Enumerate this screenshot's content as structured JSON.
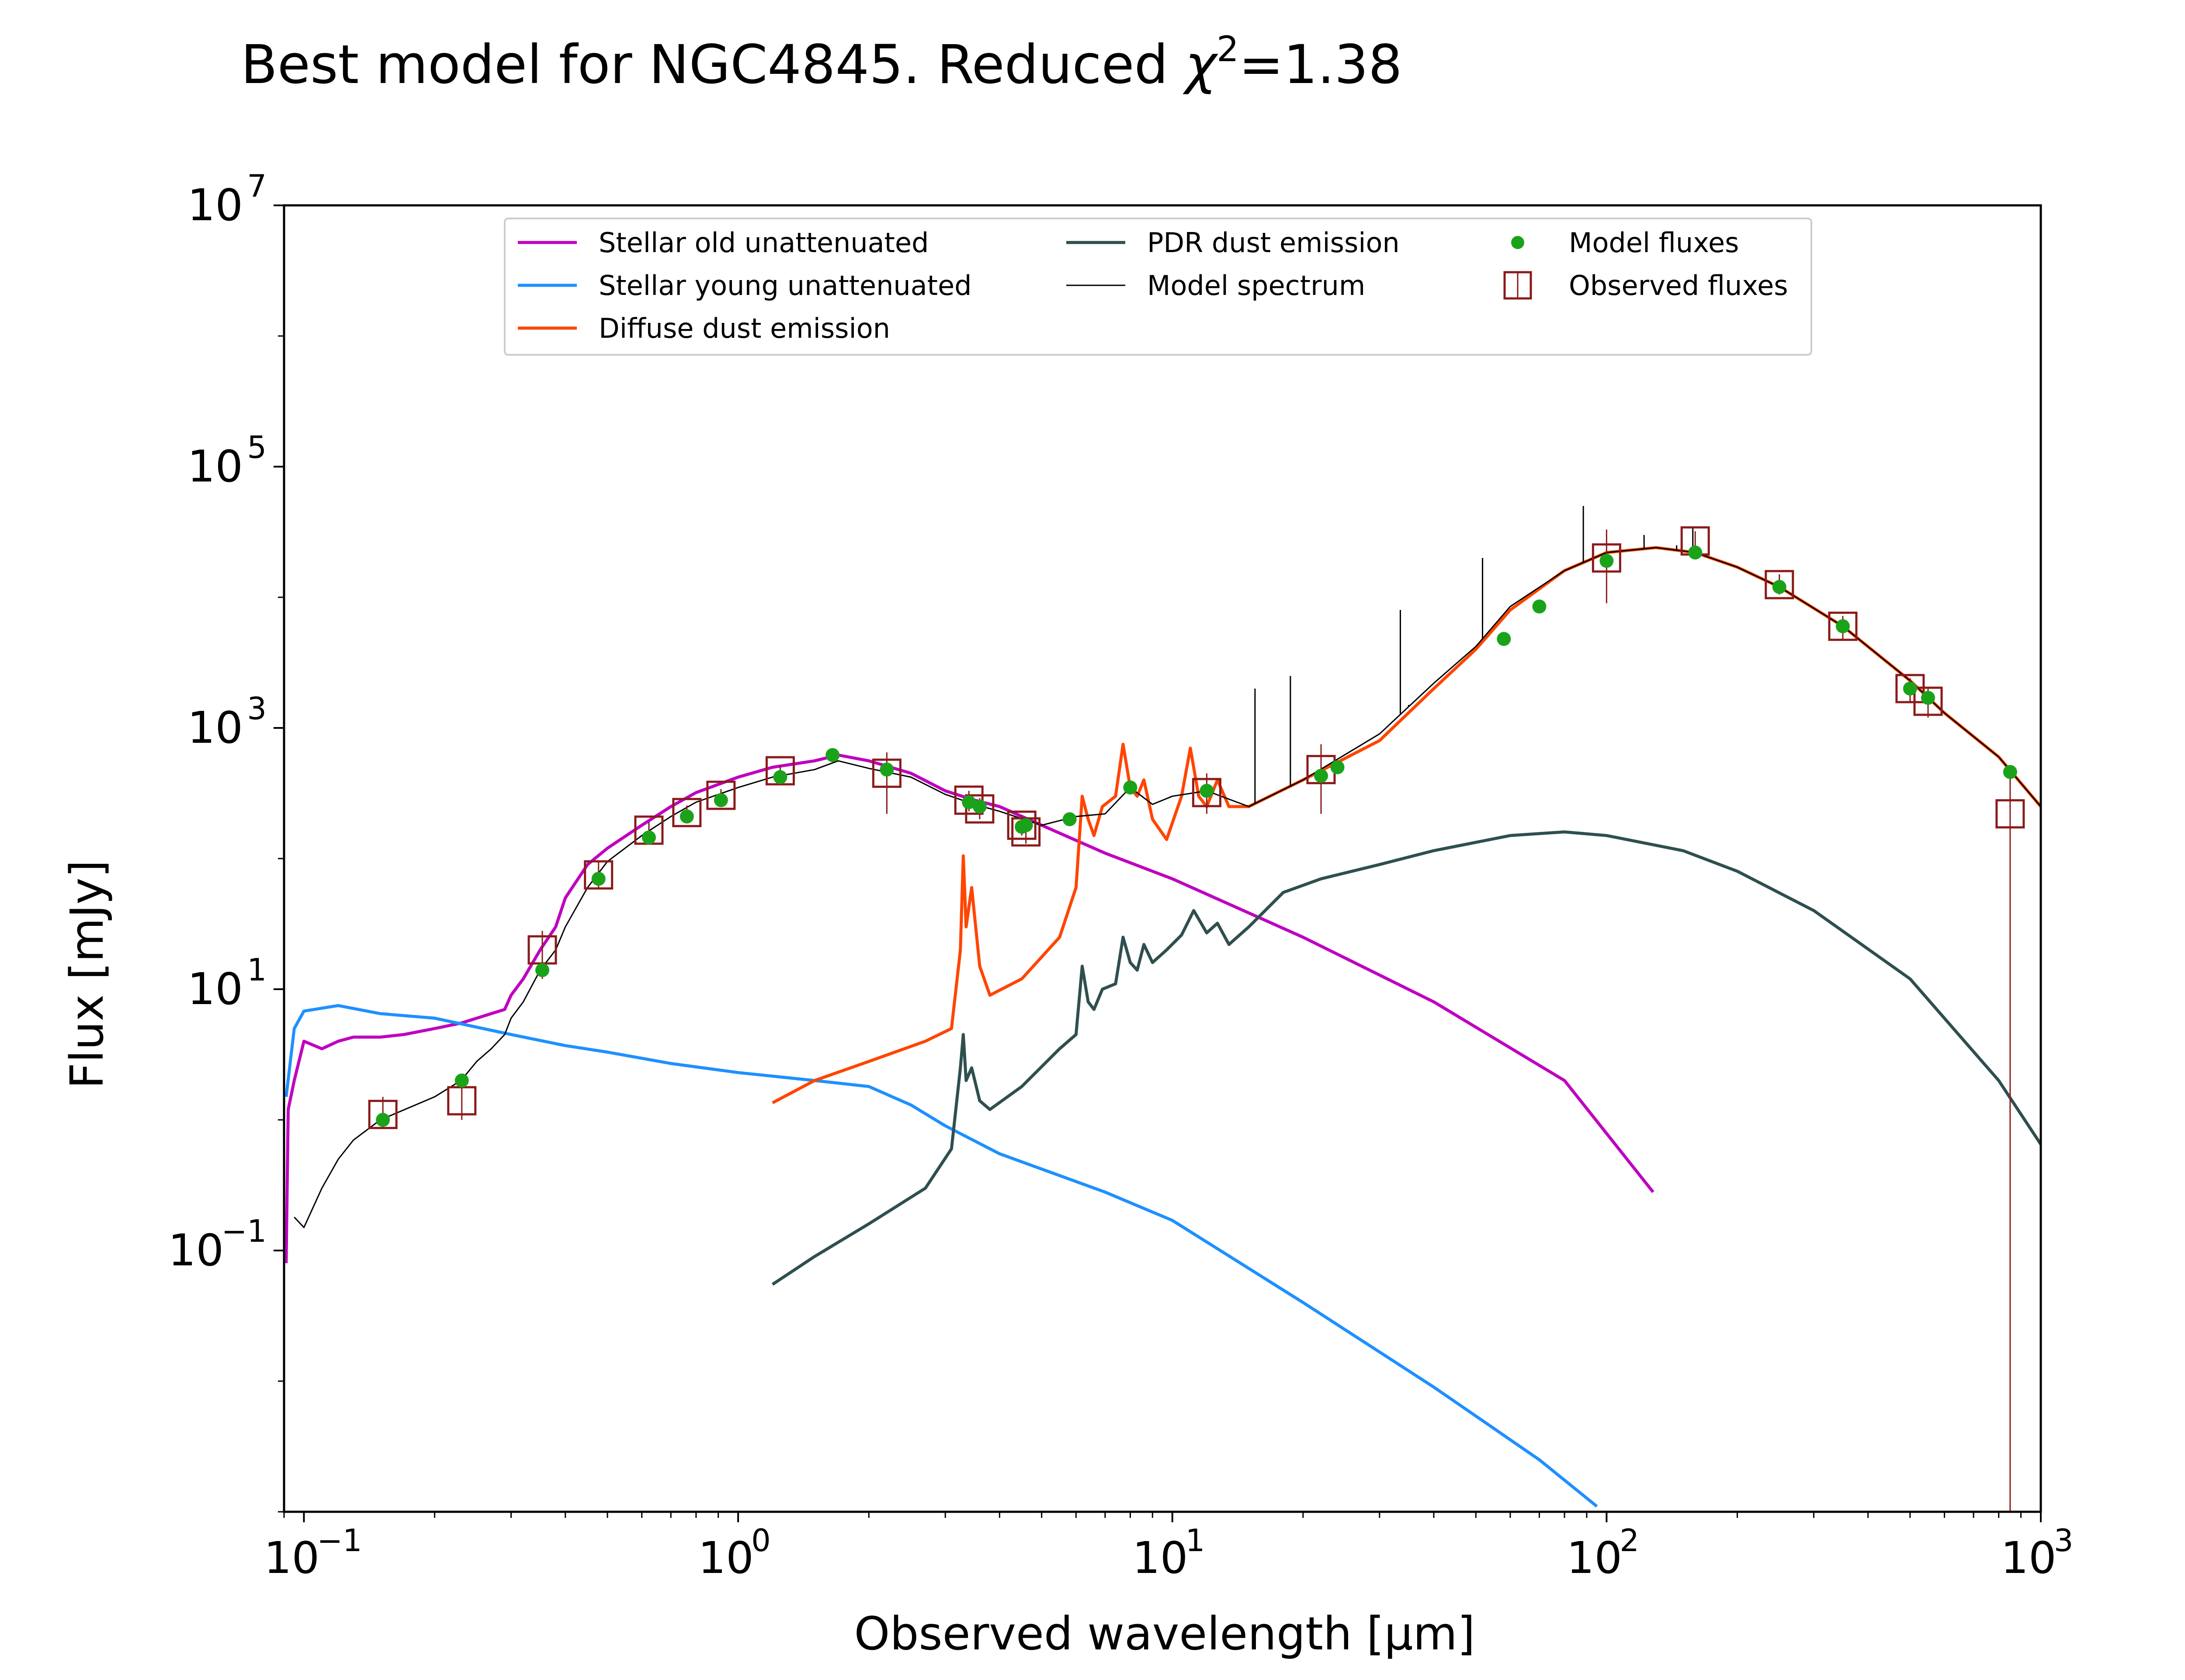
{
  "chart_data": {
    "type": "line",
    "title_main": "Best model for NGC4845. Reduced ",
    "title_chi": "χ",
    "title_chi_exp": "2",
    "title_tail": "=1.38",
    "xlabel": "Observed wavelength [μm]",
    "ylabel": "Flux [mJy]",
    "xscale": "log",
    "yscale": "log",
    "xlim": [
      0.09,
      1000
    ],
    "ylim": [
      0.001,
      10000000
    ],
    "x_ticks": [
      {
        "base": "10",
        "exp": "−1",
        "value": 0.1
      },
      {
        "base": "10",
        "exp": "0",
        "value": 1
      },
      {
        "base": "10",
        "exp": "1",
        "value": 10
      },
      {
        "base": "10",
        "exp": "2",
        "value": 100
      },
      {
        "base": "10",
        "exp": "3",
        "value": 1000
      }
    ],
    "y_ticks": [
      {
        "base": "10",
        "exp": "−1",
        "value": 0.1
      },
      {
        "base": "10",
        "exp": "1",
        "value": 10
      },
      {
        "base": "10",
        "exp": "3",
        "value": 1000
      },
      {
        "base": "10",
        "exp": "5",
        "value": 100000
      },
      {
        "base": "10",
        "exp": "7",
        "value": 10000000
      }
    ],
    "grid": false,
    "legend_position": "top-center",
    "legend": [
      {
        "label": "Stellar old unattenuated",
        "kind": "line",
        "color": "#bf00bf"
      },
      {
        "label": "Stellar young unattenuated",
        "kind": "line",
        "color": "#1e90ff"
      },
      {
        "label": "Diffuse dust emission",
        "kind": "line",
        "color": "#ff4500"
      },
      {
        "label": "PDR dust emission",
        "kind": "line",
        "color": "#2f4f4f"
      },
      {
        "label": "Model spectrum",
        "kind": "thinline",
        "color": "#000000"
      },
      {
        "label": "Model fluxes",
        "kind": "dot",
        "color": "#1aa31a"
      },
      {
        "label": "Observed fluxes",
        "kind": "square",
        "color": "#8b1a1a"
      }
    ],
    "series": [
      {
        "name": "Stellar old unattenuated",
        "color": "#bf00bf",
        "points": [
          [
            0.091,
            0.08
          ],
          [
            0.092,
            1.2
          ],
          [
            0.095,
            2.0
          ],
          [
            0.1,
            4.0
          ],
          [
            0.11,
            3.5
          ],
          [
            0.12,
            4.0
          ],
          [
            0.13,
            4.3
          ],
          [
            0.15,
            4.3
          ],
          [
            0.17,
            4.5
          ],
          [
            0.2,
            5.0
          ],
          [
            0.23,
            5.5
          ],
          [
            0.25,
            6.0
          ],
          [
            0.27,
            6.5
          ],
          [
            0.29,
            7.0
          ],
          [
            0.3,
            9.0
          ],
          [
            0.32,
            12.0
          ],
          [
            0.35,
            20
          ],
          [
            0.38,
            30
          ],
          [
            0.4,
            50
          ],
          [
            0.45,
            90
          ],
          [
            0.5,
            120
          ],
          [
            0.6,
            180
          ],
          [
            0.7,
            250
          ],
          [
            0.8,
            320
          ],
          [
            1.0,
            420
          ],
          [
            1.2,
            500
          ],
          [
            1.5,
            560
          ],
          [
            1.7,
            620
          ],
          [
            2.0,
            560
          ],
          [
            2.5,
            450
          ],
          [
            3.0,
            330
          ],
          [
            3.5,
            280
          ],
          [
            4.0,
            250
          ],
          [
            5.0,
            180
          ],
          [
            7.0,
            110
          ],
          [
            10,
            70
          ],
          [
            20,
            25
          ],
          [
            40,
            8
          ],
          [
            80,
            2
          ],
          [
            128,
            0.28
          ]
        ]
      },
      {
        "name": "Stellar young unattenuated",
        "color": "#1e90ff",
        "points": [
          [
            0.091,
            1.5
          ],
          [
            0.095,
            5.0
          ],
          [
            0.1,
            6.8
          ],
          [
            0.12,
            7.5
          ],
          [
            0.15,
            6.5
          ],
          [
            0.2,
            6.0
          ],
          [
            0.3,
            4.5
          ],
          [
            0.4,
            3.7
          ],
          [
            0.5,
            3.3
          ],
          [
            0.7,
            2.7
          ],
          [
            1.0,
            2.3
          ],
          [
            1.5,
            2.0
          ],
          [
            2.0,
            1.8
          ],
          [
            2.5,
            1.3
          ],
          [
            3.0,
            0.9
          ],
          [
            4.0,
            0.55
          ],
          [
            5.0,
            0.42
          ],
          [
            7.0,
            0.28
          ],
          [
            10,
            0.17
          ],
          [
            20,
            0.04
          ],
          [
            40,
            0.009
          ],
          [
            70,
            0.0025
          ],
          [
            95,
            0.0011
          ]
        ]
      },
      {
        "name": "Diffuse dust emission",
        "color": "#ff4500",
        "points": [
          [
            1.2,
            1.35
          ],
          [
            1.5,
            2.0
          ],
          [
            2.0,
            2.8
          ],
          [
            2.7,
            4.0
          ],
          [
            3.1,
            5.0
          ],
          [
            3.25,
            20
          ],
          [
            3.3,
            105
          ],
          [
            3.35,
            30
          ],
          [
            3.45,
            60
          ],
          [
            3.6,
            15
          ],
          [
            3.8,
            9.0
          ],
          [
            4.5,
            12
          ],
          [
            5.5,
            25
          ],
          [
            6.0,
            60
          ],
          [
            6.2,
            300
          ],
          [
            6.4,
            200
          ],
          [
            6.6,
            150
          ],
          [
            6.9,
            250
          ],
          [
            7.4,
            300
          ],
          [
            7.7,
            750
          ],
          [
            8.0,
            350
          ],
          [
            8.3,
            300
          ],
          [
            8.6,
            400
          ],
          [
            9.0,
            200
          ],
          [
            9.7,
            140
          ],
          [
            10.5,
            300
          ],
          [
            11.0,
            700
          ],
          [
            11.5,
            300
          ],
          [
            12.0,
            250
          ],
          [
            12.7,
            400
          ],
          [
            13.5,
            250
          ],
          [
            15,
            250
          ],
          [
            20,
            400
          ],
          [
            30,
            800
          ],
          [
            40,
            2000
          ],
          [
            50,
            4000
          ],
          [
            60,
            8000
          ],
          [
            80,
            16000
          ],
          [
            100,
            22000
          ],
          [
            130,
            24000
          ],
          [
            160,
            22000
          ],
          [
            200,
            17000
          ],
          [
            250,
            12000
          ],
          [
            350,
            6000
          ],
          [
            500,
            2300
          ],
          [
            600,
            1300
          ],
          [
            800,
            600
          ],
          [
            1000,
            250
          ]
        ]
      },
      {
        "name": "PDR dust emission",
        "color": "#2f4f4f",
        "points": [
          [
            1.2,
            0.055
          ],
          [
            1.5,
            0.09
          ],
          [
            2.0,
            0.16
          ],
          [
            2.7,
            0.3
          ],
          [
            3.1,
            0.6
          ],
          [
            3.25,
            2.5
          ],
          [
            3.3,
            4.5
          ],
          [
            3.35,
            2.0
          ],
          [
            3.45,
            2.5
          ],
          [
            3.6,
            1.4
          ],
          [
            3.8,
            1.2
          ],
          [
            4.5,
            1.8
          ],
          [
            5.5,
            3.5
          ],
          [
            6.0,
            4.5
          ],
          [
            6.2,
            15
          ],
          [
            6.4,
            8
          ],
          [
            6.6,
            7
          ],
          [
            6.9,
            10
          ],
          [
            7.4,
            11
          ],
          [
            7.7,
            25
          ],
          [
            8.0,
            16
          ],
          [
            8.3,
            14
          ],
          [
            8.6,
            22
          ],
          [
            9.0,
            16
          ],
          [
            9.7,
            20
          ],
          [
            10.5,
            26
          ],
          [
            11.2,
            40
          ],
          [
            12.0,
            27
          ],
          [
            12.7,
            32
          ],
          [
            13.5,
            22
          ],
          [
            15,
            30
          ],
          [
            18,
            55
          ],
          [
            22,
            70
          ],
          [
            30,
            90
          ],
          [
            40,
            115
          ],
          [
            60,
            150
          ],
          [
            80,
            160
          ],
          [
            100,
            150
          ],
          [
            150,
            115
          ],
          [
            200,
            80
          ],
          [
            300,
            40
          ],
          [
            500,
            12
          ],
          [
            800,
            2
          ],
          [
            1000,
            0.65
          ]
        ]
      },
      {
        "name": "Model spectrum",
        "color": "#000000",
        "points": [
          [
            0.095,
            0.18
          ],
          [
            0.1,
            0.15
          ],
          [
            0.11,
            0.3
          ],
          [
            0.12,
            0.5
          ],
          [
            0.13,
            0.7
          ],
          [
            0.15,
            1.0
          ],
          [
            0.2,
            1.5
          ],
          [
            0.23,
            2.0
          ],
          [
            0.25,
            2.8
          ],
          [
            0.27,
            3.5
          ],
          [
            0.29,
            4.5
          ],
          [
            0.3,
            6.0
          ],
          [
            0.32,
            8.0
          ],
          [
            0.35,
            14
          ],
          [
            0.38,
            20
          ],
          [
            0.4,
            30
          ],
          [
            0.45,
            60
          ],
          [
            0.5,
            95
          ],
          [
            0.6,
            150
          ],
          [
            0.7,
            210
          ],
          [
            0.8,
            270
          ],
          [
            1.0,
            350
          ],
          [
            1.2,
            420
          ],
          [
            1.5,
            480
          ],
          [
            1.7,
            560
          ],
          [
            2.0,
            490
          ],
          [
            2.5,
            420
          ],
          [
            3.0,
            310
          ],
          [
            3.5,
            260
          ],
          [
            4.0,
            230
          ],
          [
            5.0,
            180
          ],
          [
            6.0,
            210
          ],
          [
            7.0,
            220
          ],
          [
            8.0,
            350
          ],
          [
            9.0,
            260
          ],
          [
            10,
            300
          ],
          [
            12,
            330
          ],
          [
            15,
            250
          ],
          [
            20,
            400
          ],
          [
            30,
            900
          ],
          [
            40,
            2200
          ],
          [
            50,
            4200
          ],
          [
            60,
            8500
          ],
          [
            80,
            16000
          ],
          [
            100,
            22000
          ],
          [
            130,
            24000
          ],
          [
            160,
            22000
          ],
          [
            200,
            17000
          ],
          [
            250,
            12000
          ],
          [
            350,
            6000
          ],
          [
            500,
            2300
          ],
          [
            600,
            1300
          ],
          [
            800,
            600
          ],
          [
            1000,
            250
          ]
        ]
      }
    ],
    "spectral_lines": [
      {
        "x": 15.5,
        "top": 2000
      },
      {
        "x": 18.7,
        "top": 2500
      },
      {
        "x": 33.5,
        "top": 8000
      },
      {
        "x": 35.0,
        "top": 1500
      },
      {
        "x": 51.8,
        "top": 20000
      },
      {
        "x": 88.4,
        "top": 50000
      },
      {
        "x": 122,
        "top": 30000
      },
      {
        "x": 145,
        "top": 25000
      },
      {
        "x": 158,
        "top": 35000
      }
    ],
    "model_fluxes": [
      {
        "x": 0.152,
        "y": 1.0
      },
      {
        "x": 0.231,
        "y": 2.0
      },
      {
        "x": 0.354,
        "y": 14
      },
      {
        "x": 0.477,
        "y": 70
      },
      {
        "x": 0.623,
        "y": 145
      },
      {
        "x": 0.762,
        "y": 210
      },
      {
        "x": 0.913,
        "y": 280
      },
      {
        "x": 1.25,
        "y": 420
      },
      {
        "x": 1.65,
        "y": 620
      },
      {
        "x": 2.2,
        "y": 480
      },
      {
        "x": 3.4,
        "y": 270
      },
      {
        "x": 3.6,
        "y": 250
      },
      {
        "x": 4.5,
        "y": 175
      },
      {
        "x": 4.6,
        "y": 180
      },
      {
        "x": 5.8,
        "y": 200
      },
      {
        "x": 8.0,
        "y": 350
      },
      {
        "x": 12,
        "y": 330
      },
      {
        "x": 22,
        "y": 430
      },
      {
        "x": 24,
        "y": 500
      },
      {
        "x": 58,
        "y": 4800
      },
      {
        "x": 70,
        "y": 8500
      },
      {
        "x": 100,
        "y": 19000
      },
      {
        "x": 160,
        "y": 22000
      },
      {
        "x": 250,
        "y": 12000
      },
      {
        "x": 350,
        "y": 6000
      },
      {
        "x": 500,
        "y": 2000
      },
      {
        "x": 550,
        "y": 1700
      },
      {
        "x": 850,
        "y": 460
      }
    ],
    "observed_fluxes": [
      {
        "x": 0.152,
        "y": 1.1,
        "err_lo": 0.85,
        "err_hi": 1.5
      },
      {
        "x": 0.231,
        "y": 1.4,
        "err_lo": 1.0,
        "err_hi": 2.0
      },
      {
        "x": 0.354,
        "y": 20,
        "err_lo": 12,
        "err_hi": 28
      },
      {
        "x": 0.477,
        "y": 75,
        "err_lo": 60,
        "err_hi": 95
      },
      {
        "x": 0.623,
        "y": 165,
        "err_lo": 140,
        "err_hi": 190
      },
      {
        "x": 0.762,
        "y": 225,
        "err_lo": 200,
        "err_hi": 255
      },
      {
        "x": 0.913,
        "y": 305,
        "err_lo": 270,
        "err_hi": 340
      },
      {
        "x": 1.25,
        "y": 470,
        "err_lo": 420,
        "err_hi": 520
      },
      {
        "x": 2.2,
        "y": 450,
        "err_lo": 220,
        "err_hi": 650
      },
      {
        "x": 3.4,
        "y": 280,
        "err_lo": 230,
        "err_hi": 330
      },
      {
        "x": 3.6,
        "y": 240,
        "err_lo": 200,
        "err_hi": 290
      },
      {
        "x": 4.5,
        "y": 180,
        "err_lo": 150,
        "err_hi": 215
      },
      {
        "x": 4.6,
        "y": 160,
        "err_lo": 130,
        "err_hi": 195
      },
      {
        "x": 12,
        "y": 320,
        "err_lo": 220,
        "err_hi": 450
      },
      {
        "x": 22,
        "y": 480,
        "err_lo": 220,
        "err_hi": 750
      },
      {
        "x": 100,
        "y": 20000,
        "err_lo": 9000,
        "err_hi": 33000
      },
      {
        "x": 160,
        "y": 27000,
        "err_lo": 22000,
        "err_hi": 32000
      },
      {
        "x": 250,
        "y": 12500,
        "err_lo": 10500,
        "err_hi": 15000
      },
      {
        "x": 350,
        "y": 6000,
        "err_lo": 4800,
        "err_hi": 7200
      },
      {
        "x": 500,
        "y": 2000,
        "err_lo": 1600,
        "err_hi": 2400
      },
      {
        "x": 550,
        "y": 1600,
        "err_lo": 1200,
        "err_hi": 2000
      },
      {
        "x": 850,
        "y": 220,
        "err_lo": 0.001,
        "err_hi": 450
      }
    ]
  }
}
